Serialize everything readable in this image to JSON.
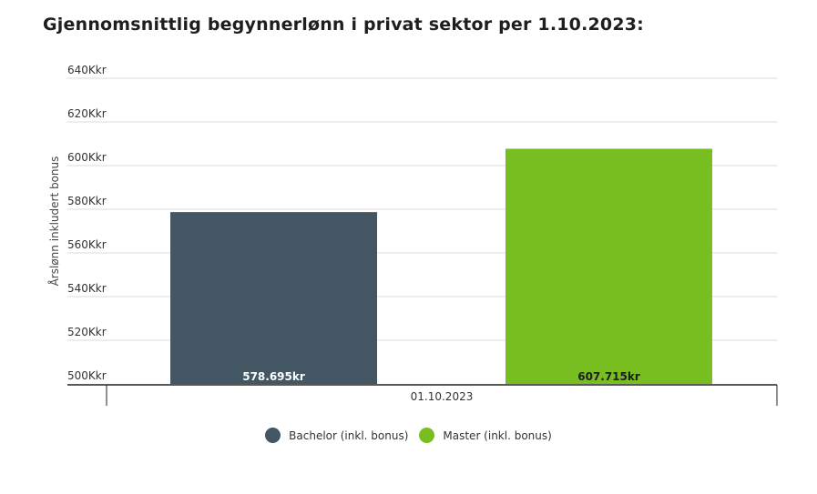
{
  "chart_data": {
    "type": "bar",
    "title": "Gjennomsnittlig begynnerlønn i privat sektor per 1.10.2023:",
    "ylabel": "Årslønn inkludert bonus",
    "xlabel": "",
    "categories": [
      "01.10.2023"
    ],
    "ylim": [
      500000,
      640000
    ],
    "yticks": [
      {
        "value": 500000,
        "label": "500Kkr"
      },
      {
        "value": 520000,
        "label": "520Kkr"
      },
      {
        "value": 540000,
        "label": "540Kkr"
      },
      {
        "value": 560000,
        "label": "560Kkr"
      },
      {
        "value": 580000,
        "label": "580Kkr"
      },
      {
        "value": 600000,
        "label": "600Kkr"
      },
      {
        "value": 620000,
        "label": "620Kkr"
      },
      {
        "value": 640000,
        "label": "640Kkr"
      }
    ],
    "series": [
      {
        "name": "Bachelor (inkl. bonus)",
        "values": [
          578695
        ],
        "value_labels": [
          "578.695kr"
        ],
        "color": "#435664",
        "label_color": "#ffffff"
      },
      {
        "name": "Master (inkl. bonus)",
        "values": [
          607715
        ],
        "value_labels": [
          "607.715kr"
        ],
        "color": "#78be21",
        "label_color": "#1e1e1e"
      }
    ],
    "grid": true,
    "legend_position": "bottom"
  }
}
